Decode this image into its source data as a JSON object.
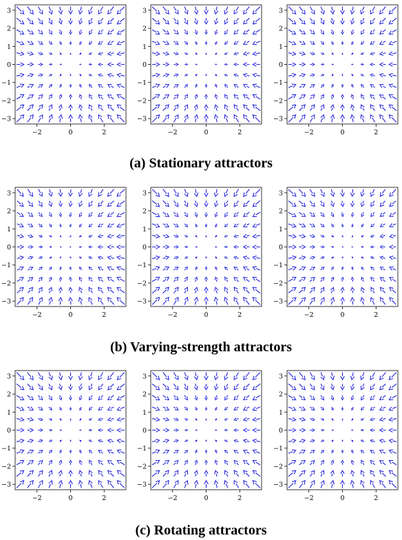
{
  "figure": {
    "captions": [
      "(a) Stationary attractors",
      "(b) Varying-strength attractors",
      "(c) Rotating attractors"
    ],
    "arrow_color": "#2222dd",
    "frame_color": "#000000"
  },
  "chart_data": [
    {
      "panel": "stationary-1",
      "row": 0,
      "type": "quiver",
      "grid": false,
      "xlim": [
        -3.3,
        3.3
      ],
      "ylim": [
        -3.3,
        3.3
      ],
      "xticks": [
        -2,
        0,
        2
      ],
      "yticks": [
        -3,
        -2,
        -1,
        0,
        1,
        2,
        3
      ],
      "xtick_labels": [
        "−2",
        "0",
        "2"
      ],
      "ytick_labels": [
        "−3",
        "−2",
        "−1",
        "0",
        "1",
        "2",
        "3"
      ],
      "sample_x": [
        -3,
        -2.4,
        -1.8,
        -1.2,
        -0.6,
        0,
        0.6,
        1.2,
        1.8,
        2.4,
        3
      ],
      "sample_y": [
        3,
        2.4,
        1.8,
        1.2,
        0.6,
        0,
        -0.6,
        -1.2,
        -1.8,
        -2.4,
        -3
      ],
      "attractors": [
        {
          "x": 0,
          "y": 0,
          "strength": 1
        }
      ],
      "rotation": 0
    },
    {
      "panel": "stationary-2",
      "row": 0,
      "type": "quiver",
      "grid": false,
      "xlim": [
        -3.3,
        3.3
      ],
      "ylim": [
        -3.3,
        3.3
      ],
      "xticks": [
        -2,
        0,
        2
      ],
      "yticks": [
        -3,
        -2,
        -1,
        0,
        1,
        2,
        3
      ],
      "xtick_labels": [
        "−2",
        "0",
        "2"
      ],
      "ytick_labels": [
        "−3",
        "−2",
        "−1",
        "0",
        "1",
        "2",
        "3"
      ],
      "sample_x": [
        -3,
        -2.4,
        -1.8,
        -1.2,
        -0.6,
        0,
        0.6,
        1.2,
        1.8,
        2.4,
        3
      ],
      "sample_y": [
        3,
        2.4,
        1.8,
        1.2,
        0.6,
        0,
        -0.6,
        -1.2,
        -1.8,
        -2.4,
        -3
      ],
      "attractors": [
        {
          "x": 0,
          "y": 0,
          "strength": 1
        }
      ],
      "rotation": 0
    },
    {
      "panel": "stationary-3",
      "row": 0,
      "type": "quiver",
      "grid": false,
      "xlim": [
        -3.3,
        3.3
      ],
      "ylim": [
        -3.3,
        3.3
      ],
      "xticks": [
        -2,
        0,
        2
      ],
      "yticks": [
        -3,
        -2,
        -1,
        0,
        1,
        2,
        3
      ],
      "xtick_labels": [
        "−2",
        "0",
        "2"
      ],
      "ytick_labels": [
        "−3",
        "−2",
        "−1",
        "0",
        "1",
        "2",
        "3"
      ],
      "sample_x": [
        -3,
        -2.4,
        -1.8,
        -1.2,
        -0.6,
        0,
        0.6,
        1.2,
        1.8,
        2.4,
        3
      ],
      "sample_y": [
        3,
        2.4,
        1.8,
        1.2,
        0.6,
        0,
        -0.6,
        -1.2,
        -1.8,
        -2.4,
        -3
      ],
      "attractors": [
        {
          "x": 0,
          "y": 0,
          "strength": 1
        }
      ],
      "rotation": 0
    },
    {
      "panel": "varying-1",
      "row": 1,
      "type": "quiver",
      "grid": false,
      "xlim": [
        -3.3,
        3.3
      ],
      "ylim": [
        -3.3,
        3.3
      ],
      "xticks": [
        -2,
        0,
        2
      ],
      "yticks": [
        -3,
        -2,
        -1,
        0,
        1,
        2,
        3
      ],
      "xtick_labels": [
        "−2",
        "0",
        "2"
      ],
      "ytick_labels": [
        "−3",
        "−2",
        "−1",
        "0",
        "1",
        "2",
        "3"
      ],
      "sample_x": [
        -3,
        -2.4,
        -1.8,
        -1.2,
        -0.6,
        0,
        0.6,
        1.2,
        1.8,
        2.4,
        3
      ],
      "sample_y": [
        3,
        2.4,
        1.8,
        1.2,
        0.6,
        0,
        -0.6,
        -1.2,
        -1.8,
        -2.4,
        -3
      ],
      "attractors": [
        {
          "x": -1,
          "y": 0,
          "strength": 1.3
        },
        {
          "x": 1,
          "y": 0,
          "strength": 0.7
        }
      ],
      "rotation": 0
    },
    {
      "panel": "varying-2",
      "row": 1,
      "type": "quiver",
      "grid": false,
      "xlim": [
        -3.3,
        3.3
      ],
      "ylim": [
        -3.3,
        3.3
      ],
      "xticks": [
        -2,
        0,
        2
      ],
      "yticks": [
        -3,
        -2,
        -1,
        0,
        1,
        2,
        3
      ],
      "xtick_labels": [
        "−2",
        "0",
        "2"
      ],
      "ytick_labels": [
        "−3",
        "−2",
        "−1",
        "0",
        "1",
        "2",
        "3"
      ],
      "sample_x": [
        -3,
        -2.4,
        -1.8,
        -1.2,
        -0.6,
        0,
        0.6,
        1.2,
        1.8,
        2.4,
        3
      ],
      "sample_y": [
        3,
        2.4,
        1.8,
        1.2,
        0.6,
        0,
        -0.6,
        -1.2,
        -1.8,
        -2.4,
        -3
      ],
      "attractors": [
        {
          "x": -1,
          "y": 0,
          "strength": 1
        },
        {
          "x": 1,
          "y": 0,
          "strength": 1
        }
      ],
      "rotation": 0
    },
    {
      "panel": "varying-3",
      "row": 1,
      "type": "quiver",
      "grid": false,
      "xlim": [
        -3.3,
        3.3
      ],
      "ylim": [
        -3.3,
        3.3
      ],
      "xticks": [
        -2,
        0,
        2
      ],
      "yticks": [
        -3,
        -2,
        -1,
        0,
        1,
        2,
        3
      ],
      "xtick_labels": [
        "−2",
        "0",
        "2"
      ],
      "ytick_labels": [
        "−3",
        "−2",
        "−1",
        "0",
        "1",
        "2",
        "3"
      ],
      "sample_x": [
        -3,
        -2.4,
        -1.8,
        -1.2,
        -0.6,
        0,
        0.6,
        1.2,
        1.8,
        2.4,
        3
      ],
      "sample_y": [
        3,
        2.4,
        1.8,
        1.2,
        0.6,
        0,
        -0.6,
        -1.2,
        -1.8,
        -2.4,
        -3
      ],
      "attractors": [
        {
          "x": -1,
          "y": 0,
          "strength": 0.7
        },
        {
          "x": 1,
          "y": 0,
          "strength": 1.3
        }
      ],
      "rotation": 0
    },
    {
      "panel": "rotating-1",
      "row": 2,
      "type": "quiver",
      "grid": false,
      "xlim": [
        -3.3,
        3.3
      ],
      "ylim": [
        -3.3,
        3.3
      ],
      "xticks": [
        -2,
        0,
        2
      ],
      "yticks": [
        -3,
        -2,
        -1,
        0,
        1,
        2,
        3
      ],
      "xtick_labels": [
        "−2",
        "0",
        "2"
      ],
      "ytick_labels": [
        "−3",
        "−2",
        "−1",
        "0",
        "1",
        "2",
        "3"
      ],
      "sample_x": [
        -3,
        -2.4,
        -1.8,
        -1.2,
        -0.6,
        0,
        0.6,
        1.2,
        1.8,
        2.4,
        3
      ],
      "sample_y": [
        3,
        2.4,
        1.8,
        1.2,
        0.6,
        0,
        -0.6,
        -1.2,
        -1.8,
        -2.4,
        -3
      ],
      "attractors": [
        {
          "x": 0,
          "y": 0,
          "strength": 1
        }
      ],
      "rotation": 0
    },
    {
      "panel": "rotating-2",
      "row": 2,
      "type": "quiver",
      "grid": false,
      "xlim": [
        -3.3,
        3.3
      ],
      "ylim": [
        -3.3,
        3.3
      ],
      "xticks": [
        -2,
        0,
        2
      ],
      "yticks": [
        -3,
        -2,
        -1,
        0,
        1,
        2,
        3
      ],
      "xtick_labels": [
        "−2",
        "0",
        "2"
      ],
      "ytick_labels": [
        "−3",
        "−2",
        "−1",
        "0",
        "1",
        "2",
        "3"
      ],
      "sample_x": [
        -3,
        -2.4,
        -1.8,
        -1.2,
        -0.6,
        0,
        0.6,
        1.2,
        1.8,
        2.4,
        3
      ],
      "sample_y": [
        3,
        2.4,
        1.8,
        1.2,
        0.6,
        0,
        -0.6,
        -1.2,
        -1.8,
        -2.4,
        -3
      ],
      "attractors": [
        {
          "x": -1,
          "y": -1,
          "strength": 1
        },
        {
          "x": 1,
          "y": 1,
          "strength": 1
        }
      ],
      "rotation": 0
    },
    {
      "panel": "rotating-3",
      "row": 2,
      "type": "quiver",
      "grid": false,
      "xlim": [
        -3.3,
        3.3
      ],
      "ylim": [
        -3.3,
        3.3
      ],
      "xticks": [
        -2,
        0,
        2
      ],
      "yticks": [
        -3,
        -2,
        -1,
        0,
        1,
        2,
        3
      ],
      "xtick_labels": [
        "−2",
        "0",
        "2"
      ],
      "ytick_labels": [
        "−3",
        "−2",
        "−1",
        "0",
        "1",
        "2",
        "3"
      ],
      "sample_x": [
        -3,
        -2.4,
        -1.8,
        -1.2,
        -0.6,
        0,
        0.6,
        1.2,
        1.8,
        2.4,
        3
      ],
      "sample_y": [
        3,
        2.4,
        1.8,
        1.2,
        0.6,
        0,
        -0.6,
        -1.2,
        -1.8,
        -2.4,
        -3
      ],
      "attractors": [
        {
          "x": -1.4,
          "y": 0,
          "strength": 1
        },
        {
          "x": 1.4,
          "y": 0,
          "strength": 1
        }
      ],
      "rotation": 0
    }
  ]
}
